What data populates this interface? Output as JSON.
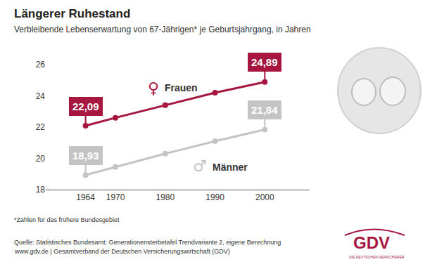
{
  "chart_data": {
    "type": "line",
    "title": "Längerer Ruhestand",
    "subtitle": "Verbleibende Lebenserwartung von 67-Jährigen* je Geburtsjahrgang, in Jahren",
    "footnote": "*Zahlen für das frühere Bundesgebiet",
    "source": [
      "Quelle: Statistisches Bundesamt: Generationensterbetafel Trendvariante 2, eigene Berechnung",
      "www.gdv.de | Gesamtverband der Deutschen Versicherungswirtschaft (GDV)"
    ],
    "logo": {
      "text": "GDV",
      "tagline": "DIE DEUTSCHEN VERSICHERER"
    },
    "x": [
      1964,
      1970,
      1980,
      1990,
      2000
    ],
    "series": [
      {
        "name": "Frauen",
        "symbol": "♀",
        "color": "#a6163f",
        "marker": "circle",
        "line_style": "solid",
        "values": [
          22.09,
          22.6,
          23.4,
          24.2,
          24.89
        ],
        "value_labels": [
          "22,09",
          null,
          null,
          null,
          "24,89"
        ]
      },
      {
        "name": "Männer",
        "symbol": "♂",
        "color": "#c4c4c4",
        "marker": "circle",
        "line_style": "solid",
        "values": [
          18.93,
          19.45,
          20.3,
          21.1,
          21.84
        ],
        "value_labels": [
          "18,93",
          null,
          null,
          null,
          "21,84"
        ]
      }
    ],
    "xlim": [
      1956,
      2009
    ],
    "xticks": [
      1964,
      1970,
      1980,
      1990,
      2000
    ],
    "ylim": [
      18,
      26
    ],
    "yticks": [
      18,
      20,
      22,
      24,
      26
    ],
    "grid": false,
    "legend": false
  }
}
